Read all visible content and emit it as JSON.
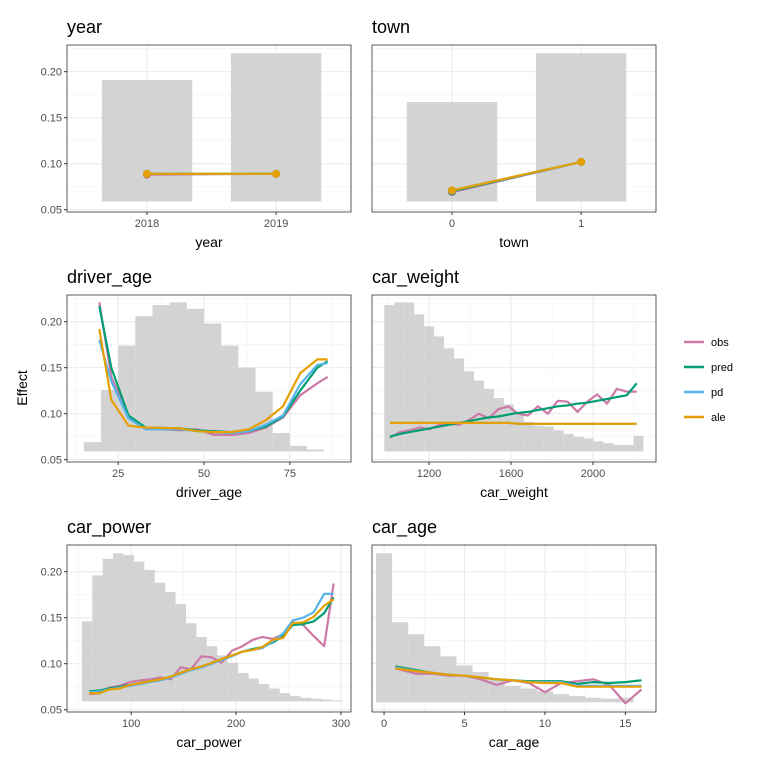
{
  "chart_data": {
    "type": "line",
    "ylabel": "Effect",
    "ylim": [
      0.0475,
      0.229
    ],
    "yticks": [
      0.05,
      0.1,
      0.15,
      0.2
    ],
    "ytick_labels": [
      "0.05",
      "0.10",
      "0.15",
      "0.20"
    ],
    "grid": true,
    "legend_position": "right",
    "legend": [
      "obs",
      "pred",
      "pd",
      "ale"
    ],
    "colors": {
      "obs": "#CC79A7",
      "pred": "#009E73",
      "pd": "#56B4E9",
      "ale": "#E69F00",
      "histogram": "#D3D3D3"
    },
    "panels": [
      {
        "title": "year",
        "xlabel": "year",
        "kind": "discrete",
        "categories": [
          "2018",
          "2019"
        ],
        "bar_heights": [
          0.191,
          0.22
        ],
        "bar_base": 0.059,
        "series": {
          "obs": [
            0.088,
            0.089
          ],
          "pred": [
            0.089,
            0.089
          ],
          "pd": [
            0.089,
            0.089
          ],
          "ale": [
            0.089,
            0.089
          ]
        }
      },
      {
        "title": "town",
        "xlabel": "town",
        "kind": "discrete",
        "categories": [
          "0",
          "1"
        ],
        "bar_heights": [
          0.167,
          0.22
        ],
        "bar_base": 0.059,
        "series": {
          "obs": [
            0.069,
            0.102
          ],
          "pred": [
            0.07,
            0.102
          ],
          "pd": [
            0.071,
            0.102
          ],
          "ale": [
            0.071,
            0.102
          ]
        }
      },
      {
        "title": "driver_age",
        "xlabel": "driver_age",
        "kind": "continuous",
        "xlim": [
          10.1,
          92.8
        ],
        "xticks": [
          25,
          50,
          75
        ],
        "xtick_labels": [
          "25",
          "50",
          "75"
        ],
        "hist": {
          "start": 15,
          "width": 5,
          "base": 0.059,
          "heights": [
            0.069,
            0.126,
            0.174,
            0.206,
            0.218,
            0.221,
            0.214,
            0.198,
            0.174,
            0.15,
            0.124,
            0.079,
            0.065,
            0.061
          ]
        },
        "x": [
          19.5,
          23,
          28,
          33,
          43,
          48,
          53,
          58,
          63,
          68,
          73,
          78,
          83,
          86
        ],
        "series": {
          "obs": [
            0.221,
            0.14,
            0.097,
            0.084,
            0.082,
            0.083,
            0.077,
            0.077,
            0.079,
            0.085,
            0.096,
            0.12,
            0.133,
            0.14
          ],
          "pred": [
            0.217,
            0.15,
            0.098,
            0.085,
            0.084,
            0.082,
            0.081,
            0.08,
            0.081,
            0.086,
            0.097,
            0.125,
            0.15,
            0.157
          ],
          "pd": [
            0.18,
            0.135,
            0.095,
            0.083,
            0.083,
            0.081,
            0.08,
            0.079,
            0.081,
            0.088,
            0.098,
            0.132,
            0.153,
            0.155
          ],
          "ale": [
            0.192,
            0.115,
            0.087,
            0.085,
            0.084,
            0.081,
            0.08,
            0.08,
            0.083,
            0.093,
            0.108,
            0.144,
            0.159,
            0.159
          ]
        }
      },
      {
        "title": "car_weight",
        "xlabel": "car_weight",
        "kind": "continuous",
        "xlim": [
          922,
          2307
        ],
        "xticks": [
          1200,
          1600,
          2000
        ],
        "xtick_labels": [
          "1200",
          "1600",
          "2000"
        ],
        "hist": {
          "start": 982,
          "width": 48.6,
          "base": 0.059,
          "heights": [
            0.218,
            0.221,
            0.221,
            0.208,
            0.195,
            0.184,
            0.171,
            0.16,
            0.146,
            0.136,
            0.127,
            0.117,
            0.11,
            0.099,
            0.091,
            0.087,
            0.086,
            0.082,
            0.078,
            0.075,
            0.073,
            0.07,
            0.068,
            0.066,
            0.066,
            0.076
          ]
        },
        "x": [
          1010,
          1058,
          1106,
          1154,
          1202,
          1250,
          1299,
          1347,
          1395,
          1443,
          1491,
          1539,
          1587,
          1635,
          1683,
          1731,
          1780,
          1828,
          1876,
          1924,
          1972,
          2020,
          2068,
          2116,
          2164,
          2213
        ],
        "series": {
          "obs": [
            0.074,
            0.08,
            0.082,
            0.085,
            0.083,
            0.088,
            0.089,
            0.088,
            0.093,
            0.1,
            0.095,
            0.105,
            0.108,
            0.1,
            0.098,
            0.108,
            0.1,
            0.114,
            0.113,
            0.102,
            0.113,
            0.121,
            0.111,
            0.127,
            0.124,
            0.124
          ],
          "pred": [
            0.075,
            0.078,
            0.08,
            0.082,
            0.084,
            0.086,
            0.088,
            0.09,
            0.092,
            0.094,
            0.096,
            0.097,
            0.099,
            0.101,
            0.102,
            0.104,
            0.106,
            0.108,
            0.109,
            0.111,
            0.112,
            0.114,
            0.116,
            0.118,
            0.12,
            0.133
          ],
          "pd": [
            0.09,
            0.09,
            0.09,
            0.09,
            0.09,
            0.09,
            0.09,
            0.09,
            0.09,
            0.09,
            0.09,
            0.09,
            0.09,
            0.089,
            0.089,
            0.089,
            0.089,
            0.089,
            0.089,
            0.089,
            0.089,
            0.089,
            0.089,
            0.089,
            0.089,
            0.089
          ],
          "ale": [
            0.09,
            0.09,
            0.09,
            0.09,
            0.09,
            0.09,
            0.09,
            0.09,
            0.09,
            0.09,
            0.09,
            0.09,
            0.09,
            0.089,
            0.089,
            0.089,
            0.089,
            0.089,
            0.089,
            0.089,
            0.089,
            0.089,
            0.089,
            0.089,
            0.089,
            0.089
          ]
        }
      },
      {
        "title": "car_power",
        "xlabel": "car_power",
        "kind": "continuous",
        "xlim": [
          38.8,
          309.6
        ],
        "xticks": [
          100,
          200,
          300
        ],
        "xtick_labels": [
          "100",
          "200",
          "300"
        ],
        "hist": {
          "start": 53,
          "width": 9.93,
          "base": 0.059,
          "heights": [
            0.146,
            0.196,
            0.214,
            0.22,
            0.218,
            0.211,
            0.202,
            0.188,
            0.178,
            0.165,
            0.144,
            0.129,
            0.119,
            0.109,
            0.101,
            0.09,
            0.084,
            0.078,
            0.073,
            0.068,
            0.065,
            0.063,
            0.062,
            0.061,
            0.06
          ]
        },
        "x": [
          60,
          70,
          79,
          89,
          99,
          109,
          118,
          128,
          138,
          147,
          157,
          167,
          177,
          186,
          196,
          206,
          216,
          225,
          235,
          245,
          254,
          264,
          274,
          284,
          293
        ],
        "series": {
          "obs": [
            0.067,
            0.068,
            0.074,
            0.076,
            0.08,
            0.082,
            0.083,
            0.085,
            0.083,
            0.096,
            0.094,
            0.108,
            0.107,
            0.101,
            0.114,
            0.119,
            0.126,
            0.129,
            0.127,
            0.132,
            0.145,
            0.142,
            0.13,
            0.119,
            0.187
          ],
          "pred": [
            0.07,
            0.071,
            0.073,
            0.075,
            0.077,
            0.079,
            0.081,
            0.083,
            0.086,
            0.09,
            0.094,
            0.097,
            0.101,
            0.105,
            0.109,
            0.113,
            0.116,
            0.118,
            0.123,
            0.13,
            0.142,
            0.143,
            0.146,
            0.155,
            0.172
          ],
          "pd": [
            0.069,
            0.07,
            0.072,
            0.074,
            0.076,
            0.078,
            0.08,
            0.082,
            0.085,
            0.089,
            0.093,
            0.096,
            0.1,
            0.104,
            0.108,
            0.113,
            0.115,
            0.117,
            0.124,
            0.133,
            0.147,
            0.15,
            0.156,
            0.176,
            0.176
          ],
          "ale": [
            0.068,
            0.068,
            0.072,
            0.073,
            0.077,
            0.079,
            0.081,
            0.083,
            0.086,
            0.09,
            0.094,
            0.097,
            0.101,
            0.105,
            0.109,
            0.113,
            0.115,
            0.118,
            0.126,
            0.128,
            0.144,
            0.145,
            0.151,
            0.163,
            0.17
          ]
        }
      },
      {
        "title": "car_age",
        "xlabel": "car_age",
        "kind": "continuous",
        "xlim": [
          -0.75,
          16.9
        ],
        "xticks": [
          0,
          5,
          10,
          15
        ],
        "xtick_labels": [
          "0",
          "5",
          "10",
          "15"
        ],
        "hist": {
          "start": -0.5,
          "width": 1,
          "base": 0.058,
          "heights": [
            0.22,
            0.145,
            0.132,
            0.119,
            0.108,
            0.098,
            0.091,
            0.083,
            0.076,
            0.073,
            0.07,
            0.067,
            0.065,
            0.063,
            0.062,
            0.063
          ]
        },
        "x": [
          0.7,
          2,
          3,
          4,
          5,
          6,
          7,
          8,
          9,
          10,
          11,
          12,
          13,
          14,
          15,
          16
        ],
        "series": {
          "obs": [
            0.095,
            0.089,
            0.089,
            0.087,
            0.087,
            0.083,
            0.077,
            0.082,
            0.079,
            0.069,
            0.079,
            0.081,
            0.083,
            0.077,
            0.057,
            0.072
          ],
          "pred": [
            0.097,
            0.093,
            0.09,
            0.088,
            0.087,
            0.085,
            0.083,
            0.082,
            0.081,
            0.081,
            0.081,
            0.078,
            0.08,
            0.079,
            0.08,
            0.082
          ],
          "pd": [
            0.096,
            0.092,
            0.09,
            0.088,
            0.087,
            0.085,
            0.083,
            0.082,
            0.08,
            0.08,
            0.08,
            0.076,
            0.076,
            0.076,
            0.076,
            0.076
          ],
          "ale": [
            0.095,
            0.092,
            0.09,
            0.088,
            0.087,
            0.085,
            0.083,
            0.082,
            0.08,
            0.079,
            0.079,
            0.075,
            0.075,
            0.075,
            0.075,
            0.075
          ]
        }
      }
    ]
  }
}
